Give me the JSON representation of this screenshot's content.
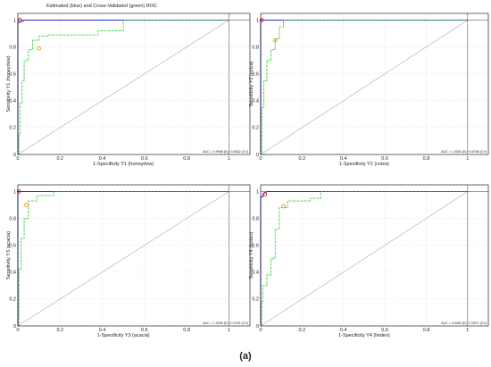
{
  "figure": {
    "title": "Estimated (blue) and Cross-Validated (green) ROC",
    "caption": "(a)",
    "colors": {
      "estimated": "#2b2bd6",
      "cross_validated": "#22cc22",
      "operating_point_estimated": "#cc2222",
      "operating_point_cross_validated": "#ff8c00",
      "diagonal": "#888888",
      "grid": "#d0d0d0",
      "frame": "#000000"
    }
  },
  "chart_data": [
    {
      "type": "line",
      "xlabel": "1-Specificity Y1 (honeydew)",
      "ylabel": "Sensitivity Y1 (honeydew)",
      "auc_text": "AUC = 0.9998 (E) / 0.8532 (CV)",
      "xlim": [
        0,
        1.1
      ],
      "ylim": [
        0,
        1.05
      ],
      "xticks": [
        "0",
        "0.2",
        "0.4",
        "0.6",
        "0.8",
        "1"
      ],
      "yticks": [
        "0",
        "0.2",
        "0.4",
        "0.6",
        "0.8",
        "1"
      ],
      "series": [
        {
          "name": "Estimated",
          "x": [
            0,
            0,
            0.02,
            0.03,
            1
          ],
          "y": [
            0,
            0.98,
            0.99,
            1,
            1
          ]
        },
        {
          "name": "Cross-Validated",
          "x": [
            0,
            0.005,
            0.005,
            0.01,
            0.01,
            0.02,
            0.02,
            0.03,
            0.03,
            0.05,
            0.05,
            0.07,
            0.07,
            0.1,
            0.1,
            0.14,
            0.14,
            0.38,
            0.38,
            0.5,
            0.5,
            1
          ],
          "y": [
            0,
            0,
            0.15,
            0.15,
            0.38,
            0.38,
            0.55,
            0.55,
            0.7,
            0.7,
            0.78,
            0.78,
            0.85,
            0.85,
            0.88,
            0.88,
            0.89,
            0.89,
            0.92,
            0.92,
            1,
            1
          ]
        }
      ],
      "operating_points": [
        {
          "x": 0.01,
          "y": 1
        },
        {
          "x": 0.1,
          "y": 0.79
        }
      ]
    },
    {
      "type": "line",
      "xlabel": "1-Specificity Y2 (colza)",
      "ylabel": "Sensitivity Y2 (colza)",
      "auc_text": "AUC = 1.0000 (E) / 0.9788 (CV)",
      "xlim": [
        0,
        1.1
      ],
      "ylim": [
        0,
        1.05
      ],
      "xticks": [
        "0",
        "0.2",
        "0.4",
        "0.6",
        "0.8",
        "1"
      ],
      "yticks": [
        "0",
        "0.2",
        "0.4",
        "0.6",
        "0.8",
        "1"
      ],
      "series": [
        {
          "name": "Estimated",
          "x": [
            0,
            0,
            0.01,
            1
          ],
          "y": [
            0,
            1,
            1,
            1
          ]
        },
        {
          "name": "Cross-Validated",
          "x": [
            0,
            0.005,
            0.005,
            0.015,
            0.015,
            0.03,
            0.03,
            0.05,
            0.05,
            0.07,
            0.07,
            0.09,
            0.09,
            0.11,
            0.11,
            1
          ],
          "y": [
            0,
            0,
            0.35,
            0.35,
            0.55,
            0.55,
            0.7,
            0.7,
            0.78,
            0.78,
            0.86,
            0.86,
            0.95,
            0.95,
            1,
            1
          ]
        }
      ],
      "operating_points": [
        {
          "x": 0.005,
          "y": 1
        },
        {
          "x": 0.07,
          "y": 0.85
        }
      ]
    },
    {
      "type": "line",
      "xlabel": "1-Specificity Y3 (acacia)",
      "ylabel": "Sensitivity Y3 (acacia)",
      "auc_text": "AUC = 1.0000 (E) / 0.9792 (CV)",
      "xlim": [
        0,
        1.1
      ],
      "ylim": [
        0,
        1.05
      ],
      "xticks": [
        "0",
        "0.2",
        "0.4",
        "0.6",
        "0.8",
        "1"
      ],
      "yticks": [
        "0",
        "0.2",
        "0.4",
        "0.6",
        "0.8",
        "1"
      ],
      "series": [
        {
          "name": "Estimated",
          "x": [
            0,
            0,
            0.01,
            1
          ],
          "y": [
            0,
            1,
            1,
            1
          ]
        },
        {
          "name": "Cross-Validated",
          "x": [
            0,
            0.005,
            0.005,
            0.015,
            0.015,
            0.03,
            0.03,
            0.05,
            0.05,
            0.09,
            0.09,
            0.17,
            0.17,
            1
          ],
          "y": [
            0,
            0,
            0.42,
            0.42,
            0.65,
            0.65,
            0.8,
            0.8,
            0.93,
            0.93,
            0.97,
            0.97,
            1,
            1
          ]
        }
      ],
      "operating_points": [
        {
          "x": 0.005,
          "y": 1
        },
        {
          "x": 0.04,
          "y": 0.9
        }
      ]
    },
    {
      "type": "line",
      "xlabel": "1-Specificity Y4 (linden)",
      "ylabel": "Sensitivity Y4 (linden)",
      "auc_text": "AUC = 0.9982 (E) / 0.9371 (CV)",
      "xlim": [
        0,
        1.1
      ],
      "ylim": [
        0,
        1.05
      ],
      "xticks": [
        "0",
        "0.2",
        "0.4",
        "0.6",
        "0.8",
        "1"
      ],
      "yticks": [
        "0",
        "0.2",
        "0.4",
        "0.6",
        "0.8",
        "1"
      ],
      "series": [
        {
          "name": "Estimated",
          "x": [
            0,
            0,
            0.01,
            0.01,
            0.03,
            1
          ],
          "y": [
            0,
            0.96,
            0.96,
            0.98,
            1,
            1
          ]
        },
        {
          "name": "Cross-Validated",
          "x": [
            0,
            0.005,
            0.005,
            0.01,
            0.01,
            0.03,
            0.03,
            0.05,
            0.05,
            0.07,
            0.07,
            0.09,
            0.09,
            0.13,
            0.13,
            0.24,
            0.24,
            0.29,
            0.29,
            1
          ],
          "y": [
            0,
            0,
            0.18,
            0.18,
            0.3,
            0.3,
            0.38,
            0.38,
            0.5,
            0.5,
            0.72,
            0.72,
            0.88,
            0.88,
            0.93,
            0.93,
            0.95,
            0.95,
            1,
            1
          ]
        }
      ],
      "operating_points": [
        {
          "x": 0.02,
          "y": 0.98
        },
        {
          "x": 0.11,
          "y": 0.89
        }
      ]
    }
  ]
}
